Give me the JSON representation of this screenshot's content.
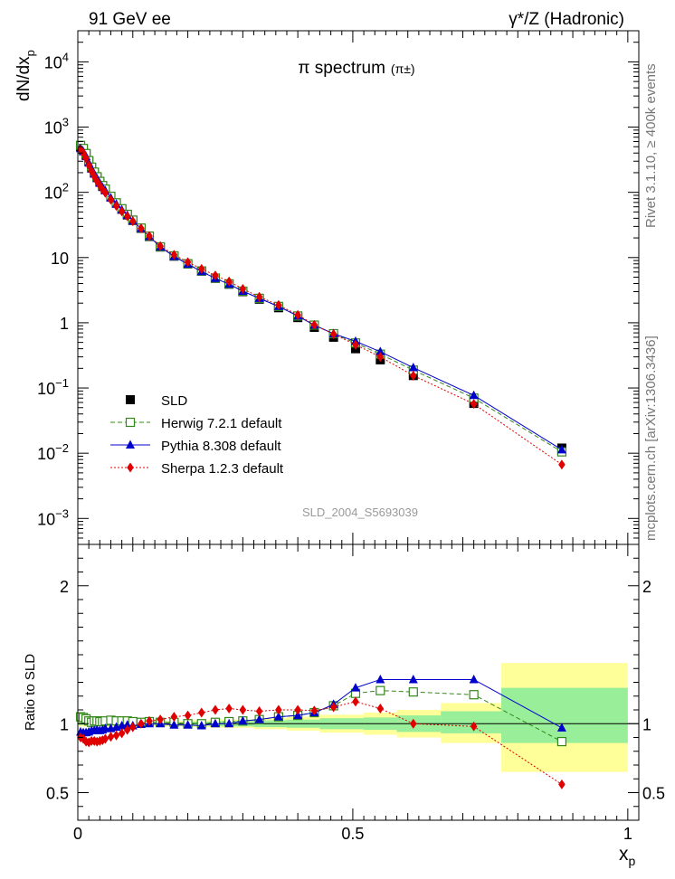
{
  "header": {
    "left": "91 GeV ee",
    "right": "γ*/Z (Hadronic)"
  },
  "side_text": {
    "top": "Rivet 3.1.10, ≥ 400k events",
    "bottom": "mcplots.cern.ch [arXiv:1306.3436]"
  },
  "chart_data": [
    {
      "type": "scatter",
      "title": "π spectrum",
      "title_sub": "(π±)",
      "ylabel": "dN/dx",
      "ylabel_sub": "p",
      "yscale": "log",
      "xlim": [
        0,
        1.02
      ],
      "ylim": [
        0.0004,
        30000
      ],
      "watermark": "SLD_2004_S5693039",
      "y_ticks": [
        {
          "base": "10",
          "exp": "4"
        },
        {
          "base": "10",
          "exp": "3"
        },
        {
          "base": "10",
          "exp": "2"
        },
        {
          "base": "10",
          "exp": ""
        },
        {
          "base": "1",
          "exp": ""
        },
        {
          "base": "10",
          "exp": "−1"
        },
        {
          "base": "10",
          "exp": "−2"
        },
        {
          "base": "10",
          "exp": "−3"
        }
      ],
      "legend_position": "lower-left",
      "x": [
        0.005,
        0.01,
        0.015,
        0.02,
        0.025,
        0.03,
        0.035,
        0.04,
        0.045,
        0.05,
        0.06,
        0.07,
        0.08,
        0.09,
        0.1,
        0.115,
        0.13,
        0.15,
        0.175,
        0.2,
        0.225,
        0.25,
        0.275,
        0.3,
        0.33,
        0.365,
        0.4,
        0.43,
        0.465,
        0.505,
        0.55,
        0.61,
        0.72,
        0.88
      ],
      "series": [
        {
          "name": "SLD",
          "color": "#000000",
          "marker": "square-filled",
          "values": [
            500,
            450,
            380,
            300,
            240,
            200,
            170,
            145,
            125,
            110,
            85,
            68,
            55,
            45,
            37,
            28,
            21,
            14.5,
            10.5,
            8.0,
            6.2,
            4.8,
            3.9,
            3.0,
            2.3,
            1.7,
            1.2,
            0.85,
            0.6,
            0.4,
            0.27,
            0.155,
            0.058,
            0.012
          ]
        },
        {
          "name": "Herwig 7.2.1 default",
          "color": "#33881a",
          "marker": "square-open",
          "line": "dashed",
          "values": [
            525,
            470,
            393,
            306,
            243,
            204,
            173,
            147,
            127,
            112,
            87,
            69,
            56,
            46,
            37.5,
            28.3,
            21.3,
            14.6,
            10.6,
            8.0,
            6.2,
            4.85,
            3.95,
            3.05,
            2.37,
            1.78,
            1.27,
            0.92,
            0.68,
            0.49,
            0.33,
            0.188,
            0.07,
            0.0105
          ]
        },
        {
          "name": "Pythia 8.308 default",
          "color": "#0000cc",
          "marker": "triangle-filled",
          "line": "solid",
          "values": [
            470,
            420,
            355,
            282,
            228,
            190,
            162,
            138,
            119,
            106,
            82,
            66,
            54,
            44.5,
            36.5,
            27.8,
            21,
            14.5,
            10.4,
            7.9,
            6.1,
            4.8,
            3.9,
            3.05,
            2.37,
            1.78,
            1.27,
            0.92,
            0.68,
            0.52,
            0.36,
            0.205,
            0.077,
            0.0113
          ]
        },
        {
          "name": "Sherpa 1.2.3 default",
          "color": "#e00000",
          "marker": "diamond-filled",
          "line": "dotted",
          "values": [
            450,
            400,
            330,
            260,
            210,
            175,
            148,
            127,
            110,
            98,
            77,
            62,
            51,
            43,
            36,
            28,
            21.4,
            15,
            11,
            8.5,
            6.7,
            5.3,
            4.3,
            3.3,
            2.5,
            1.87,
            1.32,
            0.93,
            0.67,
            0.46,
            0.3,
            0.155,
            0.057,
            0.0067
          ]
        }
      ]
    },
    {
      "type": "scatter",
      "title": "",
      "ylabel": "Ratio to SLD",
      "xlabel": "x",
      "xlabel_sub": "p",
      "xlim": [
        0,
        1.02
      ],
      "ylim": [
        0.3,
        2.3
      ],
      "x_ticks": [
        "0",
        "0.5",
        "1"
      ],
      "y_ticks": [
        "2",
        "1",
        "0.5"
      ],
      "reference_line": 1.0,
      "uncertainty_bands": [
        {
          "x0": 0.0,
          "x1": 0.2,
          "stat": [
            0.99,
            1.01
          ],
          "total": [
            0.98,
            1.02
          ]
        },
        {
          "x0": 0.2,
          "x1": 0.24,
          "stat": [
            0.985,
            1.015
          ],
          "total": [
            0.975,
            1.025
          ]
        },
        {
          "x0": 0.24,
          "x1": 0.32,
          "stat": [
            0.98,
            1.02
          ],
          "total": [
            0.97,
            1.03
          ]
        },
        {
          "x0": 0.32,
          "x1": 0.38,
          "stat": [
            0.975,
            1.025
          ],
          "total": [
            0.96,
            1.04
          ]
        },
        {
          "x0": 0.38,
          "x1": 0.44,
          "stat": [
            0.97,
            1.03
          ],
          "total": [
            0.95,
            1.05
          ]
        },
        {
          "x0": 0.44,
          "x1": 0.52,
          "stat": [
            0.96,
            1.04
          ],
          "total": [
            0.935,
            1.065
          ]
        },
        {
          "x0": 0.52,
          "x1": 0.58,
          "stat": [
            0.955,
            1.045
          ],
          "total": [
            0.92,
            1.08
          ]
        },
        {
          "x0": 0.58,
          "x1": 0.66,
          "stat": [
            0.94,
            1.06
          ],
          "total": [
            0.9,
            1.1
          ]
        },
        {
          "x0": 0.66,
          "x1": 0.77,
          "stat": [
            0.93,
            1.09
          ],
          "total": [
            0.86,
            1.15
          ]
        },
        {
          "x0": 0.77,
          "x1": 1.0,
          "stat": [
            0.86,
            1.26
          ],
          "total": [
            0.65,
            1.44
          ]
        }
      ],
      "series": [
        {
          "name": "Herwig 7.2.1 default",
          "color": "#33881a",
          "values": [
            1.05,
            1.045,
            1.035,
            1.02,
            1.01,
            1.02,
            1.02,
            1.015,
            1.015,
            1.02,
            1.025,
            1.02,
            1.02,
            1.02,
            1.015,
            1.01,
            1.015,
            1.01,
            1.01,
            1.0,
            1.0,
            1.01,
            1.015,
            1.02,
            1.03,
            1.05,
            1.06,
            1.08,
            1.13,
            1.22,
            1.24,
            1.23,
            1.21,
            0.87
          ]
        },
        {
          "name": "Pythia 8.308 default",
          "color": "#0000cc",
          "values": [
            0.94,
            0.935,
            0.935,
            0.94,
            0.95,
            0.95,
            0.955,
            0.95,
            0.955,
            0.965,
            0.965,
            0.975,
            0.985,
            0.99,
            0.985,
            0.995,
            1.0,
            1.0,
            0.99,
            0.99,
            0.985,
            1.0,
            1.0,
            1.02,
            1.03,
            1.05,
            1.06,
            1.08,
            1.14,
            1.26,
            1.32,
            1.32,
            1.32,
            0.97
          ]
        },
        {
          "name": "Sherpa 1.2.3 default",
          "color": "#e00000",
          "values": [
            0.9,
            0.89,
            0.87,
            0.865,
            0.875,
            0.875,
            0.87,
            0.875,
            0.88,
            0.89,
            0.905,
            0.915,
            0.93,
            0.955,
            0.975,
            1.0,
            1.02,
            1.03,
            1.05,
            1.06,
            1.08,
            1.1,
            1.11,
            1.1,
            1.09,
            1.1,
            1.1,
            1.095,
            1.12,
            1.16,
            1.11,
            1.0,
            0.98,
            0.56
          ]
        }
      ]
    }
  ]
}
